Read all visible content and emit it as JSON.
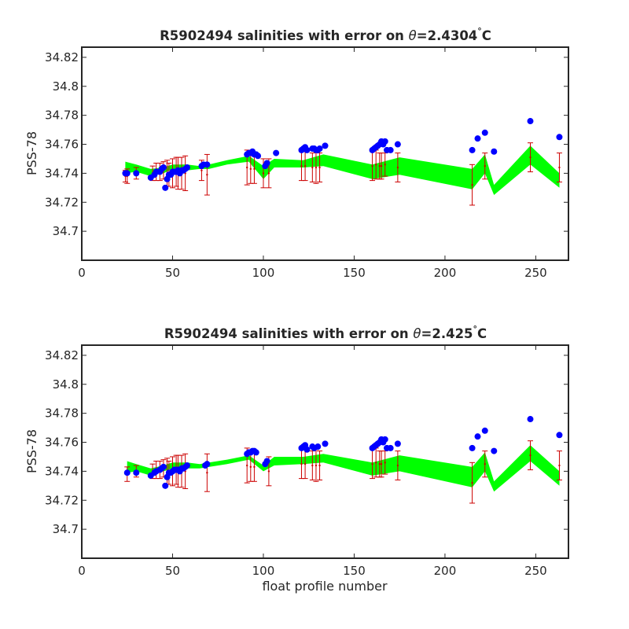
{
  "figure": {
    "xlabel": "float profile number",
    "ylabel": "PSS-78"
  },
  "chart_data": [
    {
      "type": "scatter",
      "title": "R5902494 salinities with error on θ=2.4304°C",
      "title_main": "R5902494 salinities with error on ",
      "title_theta": "θ",
      "title_value": "=2.4304",
      "title_deg": "°",
      "title_unit": "C",
      "xlabel": "",
      "ylabel": "PSS-78",
      "xlim": [
        0,
        268
      ],
      "ylim": [
        34.68,
        34.827
      ],
      "xticks": [
        0,
        50,
        100,
        150,
        200,
        250
      ],
      "yticks": [
        34.7,
        34.72,
        34.74,
        34.76,
        34.78,
        34.8,
        34.82
      ],
      "ytick_labels": [
        "34.7",
        "34.72",
        "34.74",
        "34.76",
        "34.78",
        "34.8",
        "34.82"
      ],
      "grid": false,
      "colors": {
        "points": "#0000ff",
        "errorbars": "#cc0000",
        "band": "#00ff00"
      },
      "band": {
        "x": [
          24,
          30,
          38,
          45,
          50,
          58,
          65,
          70,
          80,
          92,
          100,
          106,
          122,
          133,
          160,
          175,
          215,
          222,
          227,
          247,
          263
        ],
        "lower": [
          34.74,
          34.741,
          34.738,
          34.74,
          34.743,
          34.742,
          34.743,
          34.743,
          34.746,
          34.748,
          34.736,
          34.744,
          34.744,
          34.745,
          34.736,
          34.739,
          34.729,
          34.74,
          34.725,
          34.746,
          34.73
        ],
        "upper": [
          34.748,
          34.746,
          34.743,
          34.744,
          34.746,
          34.746,
          34.745,
          34.746,
          34.749,
          34.752,
          34.745,
          34.75,
          34.749,
          34.753,
          34.746,
          34.751,
          34.743,
          34.753,
          34.732,
          34.759,
          34.74
        ]
      },
      "errorbars": {
        "x": [
          24,
          25,
          30,
          39,
          41,
          43,
          45,
          47,
          48,
          50,
          52,
          53,
          55,
          57,
          66,
          69,
          91,
          93,
          95,
          100,
          103,
          121,
          123,
          127,
          129,
          131,
          160,
          162,
          164,
          165,
          167,
          174,
          215,
          222,
          247,
          263
        ],
        "y": [
          34.738,
          34.738,
          34.74,
          34.74,
          34.741,
          34.741,
          34.742,
          34.74,
          34.739,
          34.74,
          34.741,
          34.74,
          34.74,
          34.74,
          34.742,
          34.739,
          34.744,
          34.743,
          34.743,
          34.74,
          34.74,
          34.745,
          34.745,
          34.744,
          34.744,
          34.744,
          34.745,
          34.746,
          34.745,
          34.745,
          34.746,
          34.744,
          34.732,
          34.745,
          34.751,
          34.744
        ],
        "err": [
          0.004,
          0.005,
          0.004,
          0.005,
          0.006,
          0.006,
          0.006,
          0.009,
          0.008,
          0.01,
          0.01,
          0.011,
          0.011,
          0.012,
          0.007,
          0.014,
          0.012,
          0.01,
          0.01,
          0.01,
          0.01,
          0.01,
          0.01,
          0.01,
          0.011,
          0.01,
          0.01,
          0.01,
          0.009,
          0.009,
          0.008,
          0.01,
          0.014,
          0.009,
          0.01,
          0.01
        ]
      },
      "points": {
        "x": [
          24,
          25,
          30,
          38,
          40,
          41,
          43,
          44,
          45,
          46,
          47,
          48,
          49,
          50,
          51,
          52,
          53,
          54,
          55,
          56,
          57,
          58,
          66,
          67,
          69,
          91,
          92,
          93,
          94,
          95,
          96,
          97,
          101,
          102,
          107,
          121,
          122,
          123,
          124,
          127,
          128,
          129,
          130,
          131,
          134,
          160,
          161,
          162,
          163,
          164,
          165,
          166,
          167,
          168,
          170,
          174,
          215,
          218,
          222,
          227,
          247,
          263
        ],
        "y": [
          34.74,
          34.74,
          34.74,
          34.737,
          34.739,
          34.741,
          34.741,
          34.743,
          34.744,
          34.73,
          34.736,
          34.739,
          34.739,
          34.741,
          34.741,
          34.741,
          34.742,
          34.74,
          34.742,
          34.742,
          34.743,
          34.744,
          34.745,
          34.746,
          34.746,
          34.753,
          34.754,
          34.754,
          34.755,
          34.753,
          34.753,
          34.752,
          34.745,
          34.747,
          34.754,
          34.756,
          34.757,
          34.758,
          34.756,
          34.757,
          34.757,
          34.756,
          34.756,
          34.757,
          34.759,
          34.756,
          34.757,
          34.758,
          34.759,
          34.76,
          34.762,
          34.76,
          34.762,
          34.756,
          34.756,
          34.76,
          34.756,
          34.764,
          34.768,
          34.755,
          34.776,
          34.765
        ]
      }
    },
    {
      "type": "scatter",
      "title": "R5902494 salinities with error on θ=2.425°C",
      "title_main": "R5902494 salinities with error on ",
      "title_theta": "θ",
      "title_value": "=2.425",
      "title_deg": "°",
      "title_unit": "C",
      "xlabel": "float profile number",
      "ylabel": "PSS-78",
      "xlim": [
        0,
        268
      ],
      "ylim": [
        34.68,
        34.827
      ],
      "xticks": [
        0,
        50,
        100,
        150,
        200,
        250
      ],
      "yticks": [
        34.7,
        34.72,
        34.74,
        34.76,
        34.78,
        34.8,
        34.82
      ],
      "ytick_labels": [
        "34.7",
        "34.72",
        "34.74",
        "34.76",
        "34.78",
        "34.8",
        "34.82"
      ],
      "grid": false,
      "colors": {
        "points": "#0000ff",
        "errorbars": "#cc0000",
        "band": "#00ff00"
      },
      "band": {
        "x": [
          25,
          30,
          38,
          45,
          50,
          58,
          65,
          70,
          80,
          92,
          100,
          106,
          122,
          133,
          160,
          175,
          215,
          222,
          227,
          247,
          263
        ],
        "lower": [
          34.739,
          34.74,
          34.737,
          34.74,
          34.742,
          34.742,
          34.742,
          34.743,
          34.745,
          34.748,
          34.74,
          34.744,
          34.745,
          34.746,
          34.737,
          34.74,
          34.729,
          34.74,
          34.726,
          34.747,
          34.73
        ],
        "upper": [
          34.747,
          34.745,
          34.742,
          34.744,
          34.746,
          34.746,
          34.745,
          34.746,
          34.748,
          34.751,
          34.744,
          34.75,
          34.75,
          34.752,
          34.746,
          34.751,
          34.743,
          34.753,
          34.733,
          34.758,
          34.74
        ]
      },
      "errorbars": {
        "x": [
          25,
          30,
          39,
          41,
          43,
          45,
          47,
          48,
          50,
          52,
          53,
          55,
          57,
          69,
          91,
          93,
          95,
          103,
          121,
          123,
          127,
          129,
          131,
          160,
          162,
          164,
          165,
          167,
          174,
          215,
          222,
          247,
          263
        ],
        "y": [
          34.738,
          34.74,
          34.74,
          34.741,
          34.741,
          34.742,
          34.74,
          34.739,
          34.74,
          34.741,
          34.74,
          34.74,
          34.74,
          34.739,
          34.744,
          34.743,
          34.743,
          34.74,
          34.745,
          34.745,
          34.744,
          34.744,
          34.744,
          34.745,
          34.746,
          34.745,
          34.745,
          34.746,
          34.744,
          34.732,
          34.745,
          34.751,
          34.744
        ],
        "err": [
          0.005,
          0.004,
          0.005,
          0.006,
          0.006,
          0.006,
          0.009,
          0.008,
          0.01,
          0.01,
          0.011,
          0.011,
          0.012,
          0.013,
          0.012,
          0.01,
          0.01,
          0.01,
          0.01,
          0.01,
          0.01,
          0.011,
          0.01,
          0.01,
          0.01,
          0.009,
          0.009,
          0.008,
          0.01,
          0.014,
          0.009,
          0.01,
          0.01
        ]
      },
      "points": {
        "x": [
          25,
          30,
          38,
          40,
          41,
          43,
          44,
          45,
          46,
          47,
          48,
          49,
          50,
          51,
          52,
          53,
          54,
          55,
          56,
          57,
          58,
          68,
          69,
          91,
          92,
          93,
          94,
          95,
          96,
          101,
          102,
          121,
          122,
          123,
          124,
          127,
          128,
          130,
          134,
          160,
          161,
          162,
          163,
          164,
          165,
          166,
          167,
          168,
          170,
          174,
          215,
          218,
          222,
          227,
          247,
          263
        ],
        "y": [
          34.739,
          34.739,
          34.737,
          34.739,
          34.74,
          34.741,
          34.742,
          34.743,
          34.73,
          34.736,
          34.739,
          34.739,
          34.74,
          34.741,
          34.741,
          34.741,
          34.74,
          34.742,
          34.742,
          34.743,
          34.744,
          34.744,
          34.745,
          34.752,
          34.753,
          34.753,
          34.754,
          34.754,
          34.753,
          34.745,
          34.747,
          34.756,
          34.757,
          34.758,
          34.755,
          34.757,
          34.756,
          34.757,
          34.759,
          34.756,
          34.757,
          34.758,
          34.759,
          34.76,
          34.762,
          34.76,
          34.762,
          34.756,
          34.756,
          34.759,
          34.756,
          34.764,
          34.768,
          34.754,
          34.776,
          34.765
        ]
      }
    }
  ]
}
